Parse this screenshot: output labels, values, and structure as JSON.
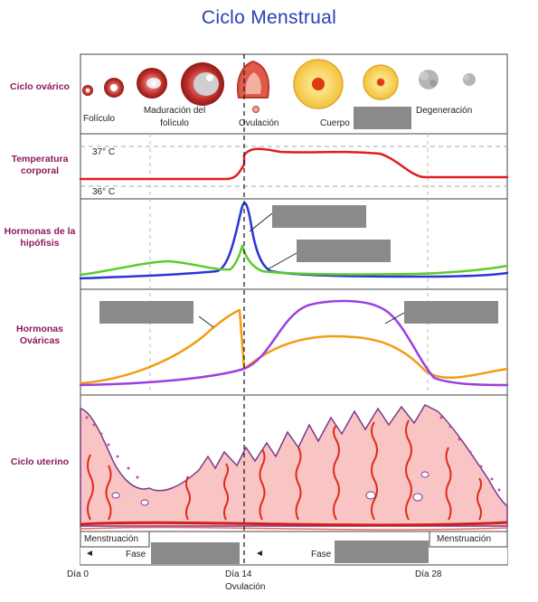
{
  "title": "Ciclo Menstrual",
  "rows": {
    "ovarian": "Ciclo ovárico",
    "temperature": "Temperatura corporal",
    "pituitary": "Hormonas de la hipófisis",
    "ovarian_hormones": "Hormonas Ováricas",
    "uterine": "Ciclo uterino"
  },
  "ovarian_labels": {
    "follicle": "Folículo",
    "maturation": "Maduración del folículo",
    "ovulation": "Ovulación",
    "corpus": "Cuerpo",
    "degeneration": "Degeneración"
  },
  "temperature_marks": {
    "high": "37° C",
    "low": "36° C"
  },
  "uterine_labels": {
    "menstruation_left": "Menstruación",
    "menstruation_right": "Menstruación",
    "phase_left": "Fase",
    "phase_right": "Fase",
    "arrow": "◄"
  },
  "days": {
    "day0": "Día 0",
    "day14": "Día 14",
    "day14_sub": "Ovulación",
    "day28": "Día 28"
  },
  "colors": {
    "title": "#2a3fb5",
    "row_label": "#8b1a5a",
    "temperature_line": "#e01e1e",
    "lh_line": "#2b35d6",
    "fsh_line": "#5ccc2a",
    "estrogen_line": "#f59a12",
    "progesterone_line": "#9a3fe0",
    "endometrium": "#f8c4c4",
    "vessel": "#e02a1a",
    "hidden_label_box": "#8a8a8a"
  }
}
